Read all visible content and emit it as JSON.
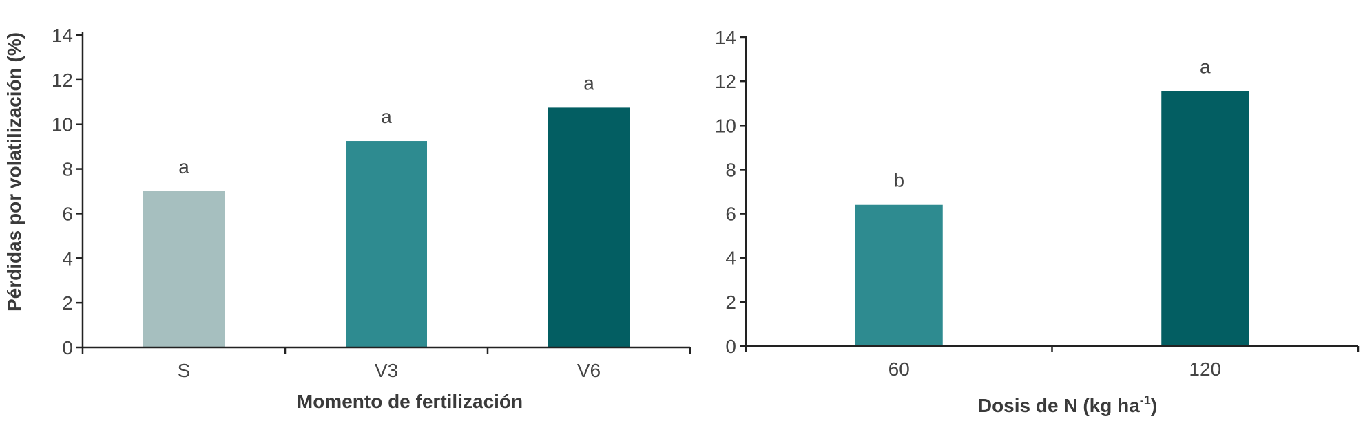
{
  "chart_data": [
    {
      "type": "bar",
      "categories": [
        "S",
        "V3",
        "V6"
      ],
      "values": [
        7.0,
        9.25,
        10.75
      ],
      "labels": [
        "a",
        "a",
        "a"
      ],
      "colors": [
        "#a6bfbf",
        "#2e8b90",
        "#035e62"
      ],
      "title": "",
      "xlabel": "Momento de fertilización",
      "ylabel": "Pérdidas por volatilización (%)",
      "ylim": [
        0,
        14
      ],
      "yticks": [
        "0",
        "2",
        "4",
        "6",
        "8",
        "10",
        "12",
        "14"
      ],
      "grid": false,
      "legend": "none"
    },
    {
      "type": "bar",
      "categories": [
        "60",
        "120"
      ],
      "values": [
        6.4,
        11.55
      ],
      "labels": [
        "b",
        "a"
      ],
      "colors": [
        "#2e8b90",
        "#035e62"
      ],
      "title": "",
      "xlabel": "Dosis de N (kg ha",
      "xlabel_sup": "-1",
      "xlabel_end": ")",
      "ylabel": "",
      "ylim": [
        0,
        14
      ],
      "yticks": [
        "0",
        "2",
        "4",
        "6",
        "8",
        "10",
        "12",
        "14"
      ],
      "grid": false,
      "legend": "none"
    }
  ]
}
